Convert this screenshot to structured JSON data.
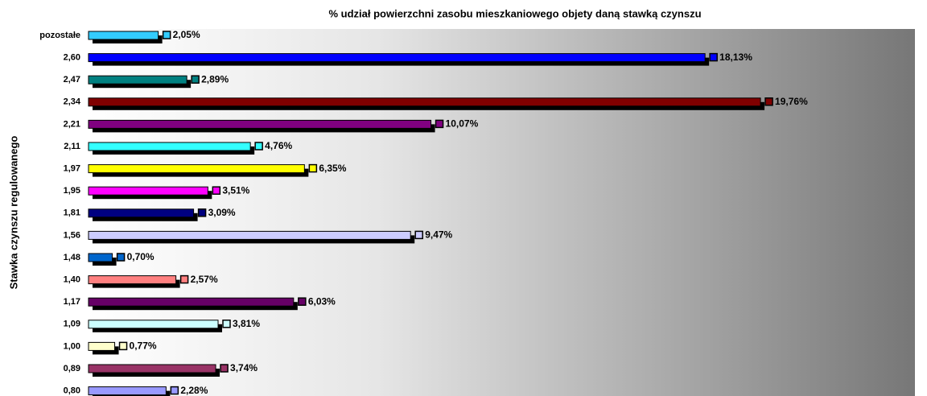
{
  "chart_data": {
    "type": "bar",
    "orientation": "horizontal",
    "title": "% udział powierzchni zasobu mieszkaniowego objety daną stawką czynszu",
    "y_label": "Stawka czynszu regulowanego",
    "categories": [
      "pozostałe",
      "2,60",
      "2,47",
      "2,34",
      "2,21",
      "2,11",
      "1,97",
      "1,95",
      "1,81",
      "1,56",
      "1,48",
      "1,40",
      "1,17",
      "1,09",
      "1,00",
      "0,89",
      "0,80"
    ],
    "values": [
      2.05,
      18.13,
      2.89,
      19.76,
      10.07,
      4.76,
      6.35,
      3.51,
      3.09,
      9.47,
      0.7,
      2.57,
      6.03,
      3.81,
      0.77,
      3.74,
      2.28
    ],
    "value_labels": [
      "2,05%",
      "18,13%",
      "2,89%",
      "19,76%",
      "10,07%",
      "4,76%",
      "6,35%",
      "3,51%",
      "3,09%",
      "9,47%",
      "0,70%",
      "2,57%",
      "6,03%",
      "3,81%",
      "0,77%",
      "3,74%",
      "2,28%"
    ],
    "colors": [
      "#33ccff",
      "#0000ff",
      "#008080",
      "#800000",
      "#800080",
      "#33ffff",
      "#ffff00",
      "#ff00ff",
      "#000080",
      "#ccccff",
      "#0066cc",
      "#ff8080",
      "#660066",
      "#ccffff",
      "#ffffcc",
      "#993366",
      "#9999ff"
    ]
  }
}
